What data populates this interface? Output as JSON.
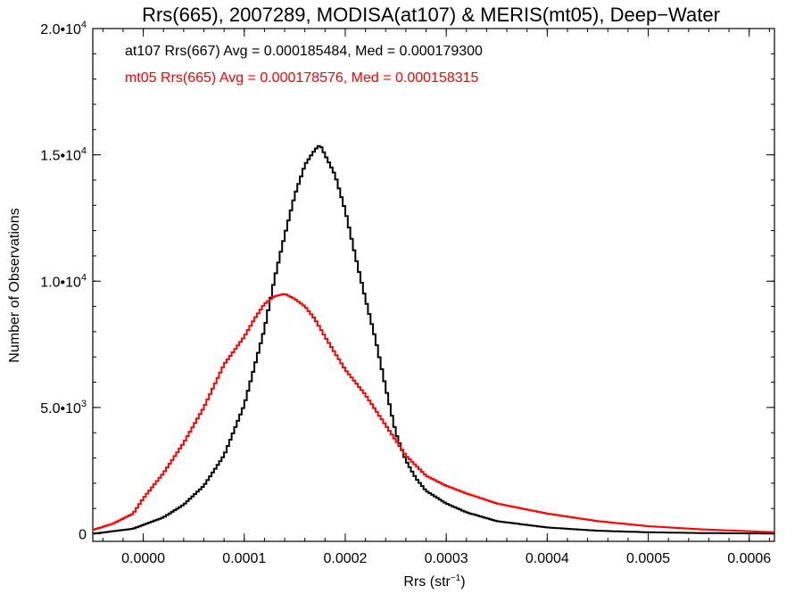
{
  "chart_data": {
    "type": "line",
    "title": "Rrs(665), 2007289, MODISA(at107) & MERIS(mt05), Deep−Water",
    "xlabel_main": "Rrs (str",
    "xlabel_sup": "−1",
    "xlabel_end": ")",
    "ylabel": "Number of Observations",
    "xlim": [
      -5e-05,
      0.000625
    ],
    "ylim": [
      -300,
      20000
    ],
    "x_ticks": [
      {
        "value": 0.0,
        "label": "0.0000"
      },
      {
        "value": 0.0001,
        "label": "0.0001"
      },
      {
        "value": 0.0002,
        "label": "0.0002"
      },
      {
        "value": 0.0003,
        "label": "0.0003"
      },
      {
        "value": 0.0004,
        "label": "0.0004"
      },
      {
        "value": 0.0005,
        "label": "0.0005"
      },
      {
        "value": 0.0006,
        "label": "0.0006"
      }
    ],
    "y_ticks": [
      {
        "value": 0,
        "mant": "0",
        "exp": ""
      },
      {
        "value": 5000,
        "mant": "5.0•10",
        "exp": "3"
      },
      {
        "value": 10000,
        "mant": "1.0•10",
        "exp": "4"
      },
      {
        "value": 15000,
        "mant": "1.5•10",
        "exp": "4"
      },
      {
        "value": 20000,
        "mant": "2.0•10",
        "exp": "4"
      }
    ],
    "annotations": [
      {
        "text": "at107 Rrs(667) Avg = 0.000185484, Med = 0.000179300",
        "color": "#000000"
      },
      {
        "text": "mt05 Rrs(665) Avg = 0.000178576, Med = 0.000158315",
        "color": "#ff0000"
      }
    ],
    "series": [
      {
        "color": "#000000",
        "x": [
          -5e-05,
          -3e-05,
          -1e-05,
          0.0,
          2e-05,
          4e-05,
          6e-05,
          8e-05,
          0.0001,
          0.00011,
          0.00012,
          0.00013,
          0.00014,
          0.00015,
          0.00016,
          0.00017,
          0.000175,
          0.00018,
          0.00019,
          0.0002,
          0.00021,
          0.00022,
          0.00023,
          0.00024,
          0.00025,
          0.00026,
          0.00027,
          0.00028,
          0.0003,
          0.00032,
          0.00035,
          0.0004,
          0.00045,
          0.0005,
          0.00055,
          0.0006,
          0.000625
        ],
        "y": [
          0,
          100,
          200,
          350,
          650,
          1150,
          1900,
          3100,
          5100,
          6600,
          8100,
          10100,
          11800,
          13400,
          14600,
          15200,
          15400,
          15000,
          14200,
          12800,
          11000,
          9300,
          7700,
          5800,
          4000,
          2900,
          2200,
          1700,
          1200,
          850,
          500,
          250,
          120,
          60,
          30,
          15,
          10
        ]
      },
      {
        "color": "#ff0000",
        "x": [
          -5e-05,
          -3e-05,
          -1e-05,
          0.0,
          2e-05,
          4e-05,
          6e-05,
          8e-05,
          0.0001,
          0.00011,
          0.00012,
          0.00013,
          0.00014,
          0.00015,
          0.00016,
          0.00017,
          0.00018,
          0.0002,
          0.00022,
          0.00024,
          0.00026,
          0.00028,
          0.0003,
          0.00032,
          0.00035,
          0.0004,
          0.00045,
          0.0005,
          0.00055,
          0.0006,
          0.000625
        ],
        "y": [
          150,
          400,
          800,
          1400,
          2400,
          3600,
          5000,
          6700,
          7800,
          8500,
          9100,
          9400,
          9500,
          9300,
          9000,
          8500,
          7800,
          6500,
          5500,
          4300,
          3100,
          2300,
          1900,
          1600,
          1200,
          800,
          500,
          300,
          180,
          100,
          60
        ]
      }
    ]
  }
}
